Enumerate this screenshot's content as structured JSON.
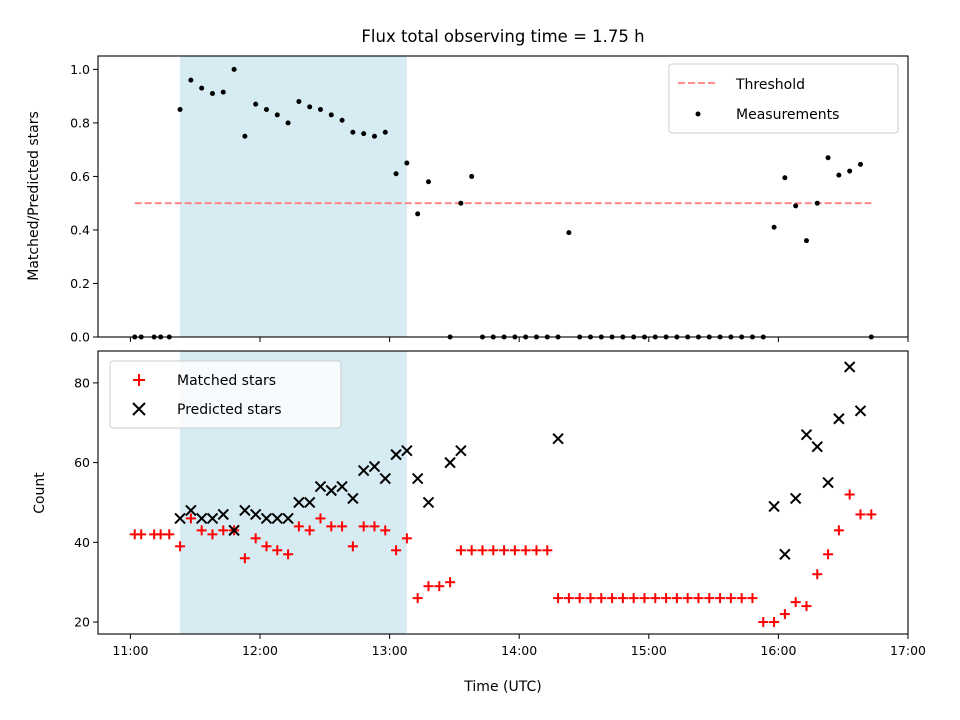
{
  "chart_data": [
    {
      "type": "scatter",
      "title": "Flux total observing time = 1.75 h",
      "xlabel": "",
      "ylabel": "Matched/Predicted stars",
      "ylim": [
        0.0,
        1.05
      ],
      "yticks": [
        0.0,
        0.2,
        0.4,
        0.6,
        0.8,
        1.0
      ],
      "ytick_labels": [
        "0.0",
        "0.2",
        "0.4",
        "0.6",
        "0.8",
        "1.0"
      ],
      "xlim": [
        "10:45",
        "17:00"
      ],
      "xticks": [
        "11:00",
        "12:00",
        "13:00",
        "14:00",
        "15:00",
        "16:00",
        "17:00"
      ],
      "highlight_span": {
        "start": "11:23",
        "end": "13:08",
        "color": "#add8e6"
      },
      "legend_position": "top-right",
      "series": [
        {
          "name": "Threshold",
          "type": "line",
          "style": "dashed",
          "color": "#ff8080",
          "x": [
            "11:02",
            "16:43"
          ],
          "y": [
            0.5,
            0.5
          ]
        },
        {
          "name": "Measurements",
          "type": "scatter",
          "color": "#000000",
          "x": [
            "11:02",
            "11:05",
            "11:11",
            "11:14",
            "11:18",
            "11:23",
            "11:28",
            "11:33",
            "11:38",
            "11:43",
            "11:48",
            "11:53",
            "11:58",
            "12:03",
            "12:08",
            "12:13",
            "12:18",
            "12:23",
            "12:28",
            "12:33",
            "12:38",
            "12:43",
            "12:48",
            "12:53",
            "12:58",
            "13:03",
            "13:08",
            "13:13",
            "13:18",
            "13:28",
            "13:33",
            "13:38",
            "13:43",
            "13:48",
            "13:53",
            "13:58",
            "14:03",
            "14:08",
            "14:13",
            "14:18",
            "14:23",
            "14:28",
            "14:33",
            "14:38",
            "14:43",
            "14:48",
            "14:53",
            "14:58",
            "15:03",
            "15:08",
            "15:13",
            "15:18",
            "15:23",
            "15:28",
            "15:33",
            "15:38",
            "15:43",
            "15:48",
            "15:53",
            "15:58",
            "16:03",
            "16:08",
            "16:13",
            "16:18",
            "16:23",
            "16:28",
            "16:33",
            "16:38",
            "16:43"
          ],
          "y": [
            0.0,
            0.0,
            0.0,
            0.0,
            0.0,
            0.85,
            0.96,
            0.93,
            0.91,
            0.915,
            1.0,
            0.75,
            0.87,
            0.85,
            0.83,
            0.8,
            0.88,
            0.86,
            0.85,
            0.83,
            0.81,
            0.765,
            0.76,
            0.75,
            0.765,
            0.61,
            0.65,
            0.46,
            0.58,
            0.0,
            0.5,
            0.6,
            0.0,
            0.0,
            0.0,
            0.0,
            0.0,
            0.0,
            0.0,
            0.0,
            0.39,
            0.0,
            0.0,
            0.0,
            0.0,
            0.0,
            0.0,
            0.0,
            0.0,
            0.0,
            0.0,
            0.0,
            0.0,
            0.0,
            0.0,
            0.0,
            0.0,
            0.0,
            0.0,
            0.41,
            0.595,
            0.49,
            0.36,
            0.5,
            0.67,
            0.605,
            0.62,
            0.645,
            0.0
          ]
        }
      ]
    },
    {
      "type": "scatter",
      "title": "",
      "xlabel": "Time (UTC)",
      "ylabel": "Count",
      "ylim": [
        17,
        88
      ],
      "yticks": [
        20,
        40,
        60,
        80
      ],
      "ytick_labels": [
        "20",
        "40",
        "60",
        "80"
      ],
      "xlim": [
        "10:45",
        "17:00"
      ],
      "xticks": [
        "11:00",
        "12:00",
        "13:00",
        "14:00",
        "15:00",
        "16:00",
        "17:00"
      ],
      "xtick_labels": [
        "11:00",
        "12:00",
        "13:00",
        "14:00",
        "15:00",
        "16:00",
        "17:00"
      ],
      "highlight_span": {
        "start": "11:23",
        "end": "13:08",
        "color": "#add8e6"
      },
      "legend_position": "top-left",
      "series": [
        {
          "name": "Matched stars",
          "marker": "plus",
          "color": "#ff0000",
          "x": [
            "11:02",
            "11:05",
            "11:11",
            "11:14",
            "11:18",
            "11:23",
            "11:28",
            "11:33",
            "11:38",
            "11:43",
            "11:48",
            "11:53",
            "11:58",
            "12:03",
            "12:08",
            "12:13",
            "12:18",
            "12:23",
            "12:28",
            "12:33",
            "12:38",
            "12:43",
            "12:48",
            "12:53",
            "12:58",
            "13:03",
            "13:08",
            "13:13",
            "13:18",
            "13:23",
            "13:28",
            "13:33",
            "13:38",
            "13:43",
            "13:48",
            "13:53",
            "13:58",
            "14:03",
            "14:08",
            "14:13",
            "14:18",
            "14:23",
            "14:28",
            "14:33",
            "14:38",
            "14:43",
            "14:48",
            "14:53",
            "14:58",
            "15:03",
            "15:08",
            "15:13",
            "15:18",
            "15:23",
            "15:28",
            "15:33",
            "15:38",
            "15:43",
            "15:48",
            "15:53",
            "15:58",
            "16:03",
            "16:08",
            "16:13",
            "16:18",
            "16:23",
            "16:28",
            "16:33",
            "16:38",
            "16:43"
          ],
          "y": [
            42,
            42,
            42,
            42,
            42,
            39,
            46,
            43,
            42,
            43,
            43,
            36,
            41,
            39,
            38,
            37,
            44,
            43,
            46,
            44,
            44,
            39,
            44,
            44,
            43,
            38,
            41,
            26,
            29,
            29,
            30,
            38,
            38,
            38,
            38,
            38,
            38,
            38,
            38,
            38,
            26,
            26,
            26,
            26,
            26,
            26,
            26,
            26,
            26,
            26,
            26,
            26,
            26,
            26,
            26,
            26,
            26,
            26,
            26,
            20,
            20,
            22,
            25,
            24,
            32,
            37,
            43,
            52,
            47,
            47
          ]
        },
        {
          "name": "Predicted stars",
          "marker": "x",
          "color": "#000000",
          "x": [
            "11:23",
            "11:28",
            "11:33",
            "11:38",
            "11:43",
            "11:48",
            "11:53",
            "11:58",
            "12:03",
            "12:08",
            "12:13",
            "12:18",
            "12:23",
            "12:28",
            "12:33",
            "12:38",
            "12:43",
            "12:48",
            "12:53",
            "12:58",
            "13:03",
            "13:08",
            "13:13",
            "13:18",
            "13:28",
            "13:33",
            "14:18",
            "15:58",
            "16:03",
            "16:08",
            "16:13",
            "16:18",
            "16:23",
            "16:28",
            "16:33",
            "16:38"
          ],
          "y": [
            46,
            48,
            46,
            46,
            47,
            43,
            48,
            47,
            46,
            46,
            46,
            50,
            50,
            54,
            53,
            54,
            51,
            58,
            59,
            56,
            62,
            63,
            56,
            50,
            60,
            63,
            66,
            49,
            37,
            51,
            67,
            64,
            55,
            71,
            84,
            73
          ]
        }
      ]
    }
  ]
}
